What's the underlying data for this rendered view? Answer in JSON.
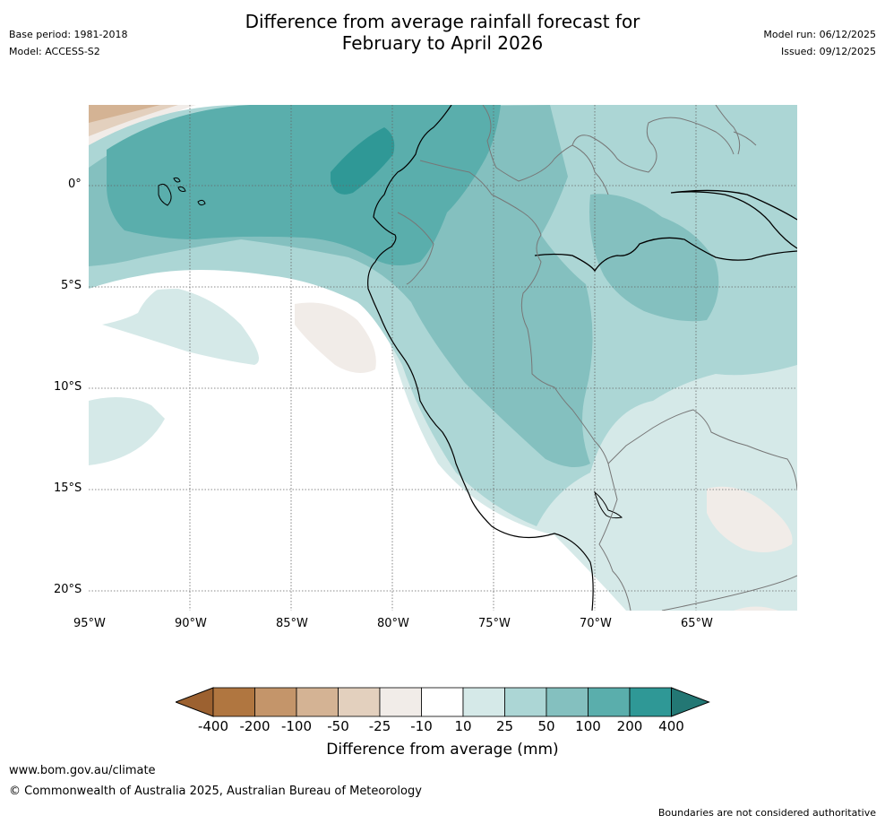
{
  "header": {
    "title_line1": "Difference from average rainfall forecast for",
    "title_line2": "February to April 2026",
    "base_period": "Base period: 1981-2018",
    "model": "Model: ACCESS-S2",
    "model_run": "Model run: 06/12/2025",
    "issued": "Issued: 09/12/2025"
  },
  "map": {
    "lat_ticks": [
      "0°",
      "5°S",
      "10°S",
      "15°S",
      "20°S"
    ],
    "lon_ticks": [
      "95°W",
      "90°W",
      "85°W",
      "80°W",
      "75°W",
      "70°W",
      "65°W"
    ]
  },
  "colorbar": {
    "labels": [
      "-400",
      "-200",
      "-100",
      "-50",
      "-25",
      "-10",
      "10",
      "25",
      "50",
      "100",
      "200",
      "400"
    ],
    "colors": [
      "#9c6130",
      "#b07640",
      "#c4956a",
      "#d4b394",
      "#e3d0be",
      "#f1ece8",
      "#ffffff",
      "#d5e9e8",
      "#acd6d5",
      "#84c0bf",
      "#5aaeac",
      "#2f9896",
      "#237774"
    ],
    "title": "Difference from average (mm)"
  },
  "footer": {
    "url": "www.bom.gov.au/climate",
    "copyright": "© Commonwealth of Australia 2025, Australian Bureau of Meteorology",
    "disclaimer": "Boundaries are not considered authoritative"
  }
}
